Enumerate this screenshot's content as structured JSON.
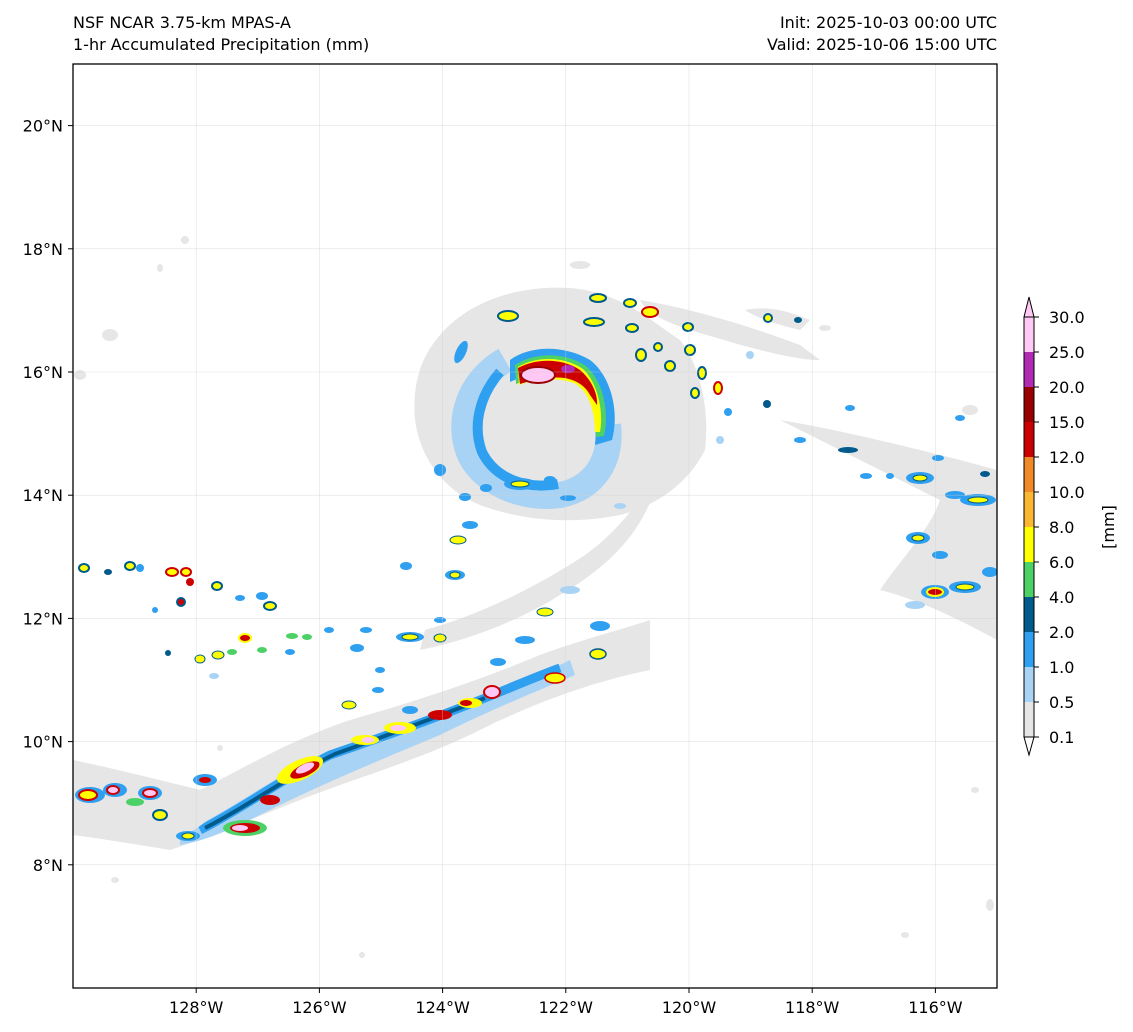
{
  "header": {
    "model_name": "NSF NCAR 3.75-km MPAS-A",
    "field_name": "1-hr Accumulated Precipitation (mm)",
    "init_time": "Init: 2025-10-03 00:00 UTC",
    "valid_time": "Valid: 2025-10-06 15:00 UTC"
  },
  "map": {
    "lon_range": [
      -130,
      -115
    ],
    "lat_range": [
      6,
      21
    ],
    "lat_ticks": [
      {
        "value": 8,
        "label": "8°N"
      },
      {
        "value": 10,
        "label": "10°N"
      },
      {
        "value": 12,
        "label": "12°N"
      },
      {
        "value": 14,
        "label": "14°N"
      },
      {
        "value": 16,
        "label": "16°N"
      },
      {
        "value": 18,
        "label": "18°N"
      },
      {
        "value": 20,
        "label": "20°N"
      }
    ],
    "lon_ticks": [
      {
        "value": -128,
        "label": "128°W"
      },
      {
        "value": -126,
        "label": "126°W"
      },
      {
        "value": -124,
        "label": "124°W"
      },
      {
        "value": -122,
        "label": "122°W"
      },
      {
        "value": -120,
        "label": "120°W"
      },
      {
        "value": -118,
        "label": "118°W"
      },
      {
        "value": -116,
        "label": "116°W"
      }
    ],
    "gridlines": true
  },
  "colorbar": {
    "unit_label": "[mm]",
    "levels": [
      "0.1",
      "0.5",
      "1.0",
      "2.0",
      "4.0",
      "6.0",
      "8.0",
      "10.0",
      "12.0",
      "15.0",
      "20.0",
      "25.0",
      "30.0"
    ],
    "colors": [
      "#e6e6e6",
      "#a9d3f5",
      "#2f9ff0",
      "#005a8c",
      "#4cd166",
      "#ffff00",
      "#fbb732",
      "#f08a28",
      "#cc0000",
      "#990000",
      "#b22ab4",
      "#ffc8f5"
    ],
    "extend": "both"
  },
  "precip_features": {
    "tropical_cyclone_center": {
      "lon": -122.5,
      "lat": 15.0
    },
    "eyewall_max": {
      "lon": -122.3,
      "lat": 16.0,
      "max_mm": 30
    },
    "rainband_southwest": {
      "from": {
        "lon": -128,
        "lat": 8.4
      },
      "to": {
        "lon": -121.6,
        "lat": 11.2
      }
    }
  }
}
